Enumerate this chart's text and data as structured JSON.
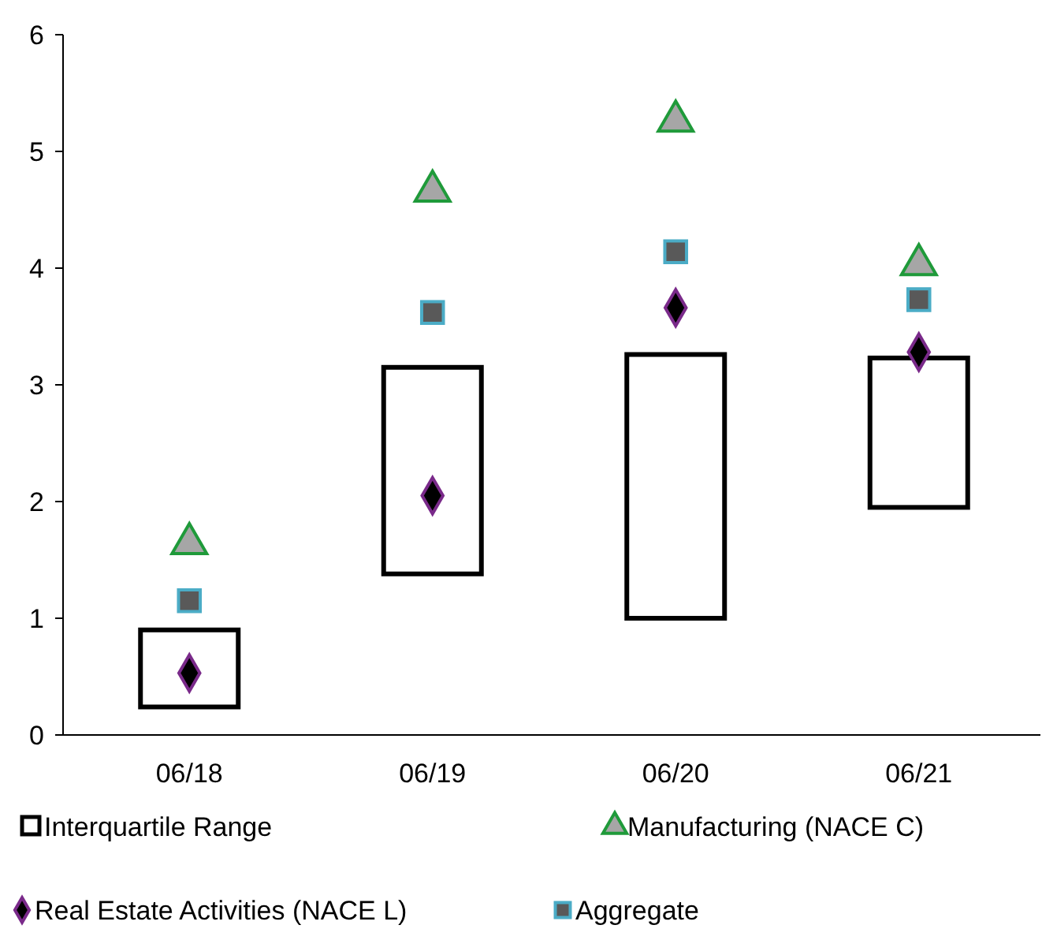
{
  "chart_data": {
    "type": "bar",
    "categories": [
      "06/18",
      "06/19",
      "06/20",
      "06/21"
    ],
    "ylim": [
      0,
      6
    ],
    "yticks": [
      0,
      1,
      2,
      3,
      4,
      5,
      6
    ],
    "grid": false,
    "legend": "bottom",
    "series": [
      {
        "name": "Interquartile Range",
        "color": "#000000",
        "base": [
          0.24,
          1.38,
          1.0,
          1.95
        ],
        "values": [
          0.66,
          1.77,
          2.26,
          1.28
        ]
      },
      {
        "name": "Manufacturing (NACE C)",
        "type": "scatter",
        "marker": "triangle",
        "color": "#a6a6a6",
        "values": [
          1.64,
          4.66,
          5.26,
          4.03
        ]
      },
      {
        "name": "Real Estate Activities (NACE L)",
        "type": "scatter",
        "marker": "diamond",
        "color": "#000000",
        "values": [
          0.53,
          2.05,
          3.66,
          3.28
        ]
      },
      {
        "name": "Aggregate",
        "type": "scatter",
        "marker": "square",
        "color": "#595959",
        "values": [
          1.15,
          3.62,
          4.14,
          3.73
        ]
      }
    ]
  }
}
